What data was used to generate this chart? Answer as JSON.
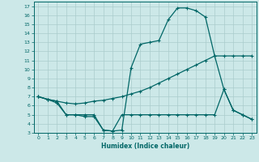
{
  "xlabel": "Humidex (Indice chaleur)",
  "bg_color": "#cce8e8",
  "grid_color": "#aacccc",
  "line_color": "#006666",
  "xlim": [
    -0.5,
    23.5
  ],
  "ylim": [
    3,
    17.5
  ],
  "xticks": [
    0,
    1,
    2,
    3,
    4,
    5,
    6,
    7,
    8,
    9,
    10,
    11,
    12,
    13,
    14,
    15,
    16,
    17,
    18,
    19,
    20,
    21,
    22,
    23
  ],
  "yticks": [
    3,
    4,
    5,
    6,
    7,
    8,
    9,
    10,
    11,
    12,
    13,
    14,
    15,
    16,
    17
  ],
  "line1_x": [
    0,
    1,
    2,
    3,
    4,
    5,
    6,
    7,
    8,
    9,
    10,
    11,
    12,
    13,
    14,
    15,
    16,
    17,
    18,
    19,
    20,
    21,
    22,
    23
  ],
  "line1_y": [
    7.0,
    6.7,
    6.5,
    5.0,
    5.0,
    5.0,
    5.0,
    3.3,
    3.2,
    3.3,
    10.2,
    12.8,
    13.0,
    13.2,
    15.5,
    16.8,
    16.8,
    16.5,
    15.8,
    11.5,
    7.8,
    5.5,
    5.0,
    4.5
  ],
  "line2_x": [
    0,
    1,
    2,
    3,
    4,
    5,
    6,
    7,
    8,
    9,
    10,
    11,
    12,
    13,
    14,
    15,
    16,
    17,
    18,
    19,
    20,
    21,
    22,
    23
  ],
  "line2_y": [
    7.0,
    6.7,
    6.5,
    6.3,
    6.2,
    6.3,
    6.5,
    6.6,
    6.8,
    7.0,
    7.3,
    7.6,
    8.0,
    8.5,
    9.0,
    9.5,
    10.0,
    10.5,
    11.0,
    11.5,
    11.5,
    11.5,
    11.5,
    11.5
  ],
  "line3_x": [
    0,
    1,
    2,
    3,
    4,
    5,
    6,
    7,
    8,
    9,
    10,
    11,
    12,
    13,
    14,
    15,
    16,
    17,
    18,
    19,
    20,
    21,
    22,
    23
  ],
  "line3_y": [
    7.0,
    6.7,
    6.3,
    5.0,
    5.0,
    4.8,
    4.8,
    3.3,
    3.2,
    5.0,
    5.0,
    5.0,
    5.0,
    5.0,
    5.0,
    5.0,
    5.0,
    5.0,
    5.0,
    5.0,
    7.8,
    5.5,
    5.0,
    4.5
  ]
}
